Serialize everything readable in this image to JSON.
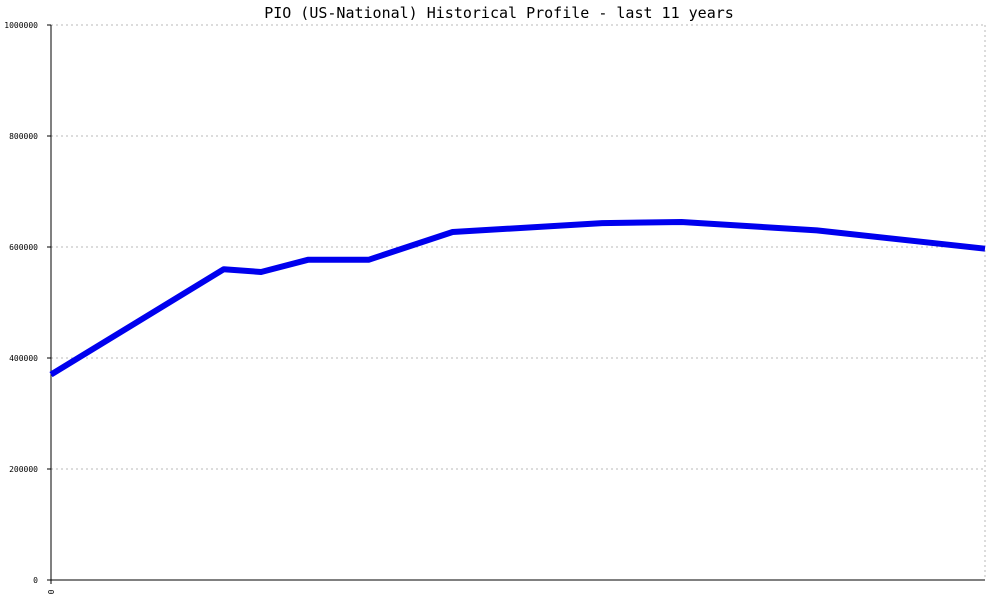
{
  "chart_data": {
    "type": "line",
    "title": "PIO (US-National) Historical Profile - last 11 years",
    "xlabel": "",
    "ylabel": "",
    "x_tick_labels": [
      "0"
    ],
    "ylim": [
      0,
      1000000
    ],
    "y_ticks": [
      0,
      200000,
      400000,
      600000,
      800000,
      1000000
    ],
    "y_tick_labels": [
      "0",
      "200000",
      "400000",
      "600000",
      "800000",
      "1000000"
    ],
    "grid": true,
    "legend": "none",
    "series": [
      {
        "color": "#0000ee",
        "x": [
          0,
          1.85,
          2.25,
          2.75,
          3.4,
          4.3,
          5.9,
          6.75,
          8.2,
          10
        ],
        "values": [
          370000,
          560000,
          555000,
          577000,
          577000,
          627000,
          643000,
          645000,
          630000,
          597000
        ]
      }
    ],
    "x_range": [
      0,
      10
    ]
  }
}
